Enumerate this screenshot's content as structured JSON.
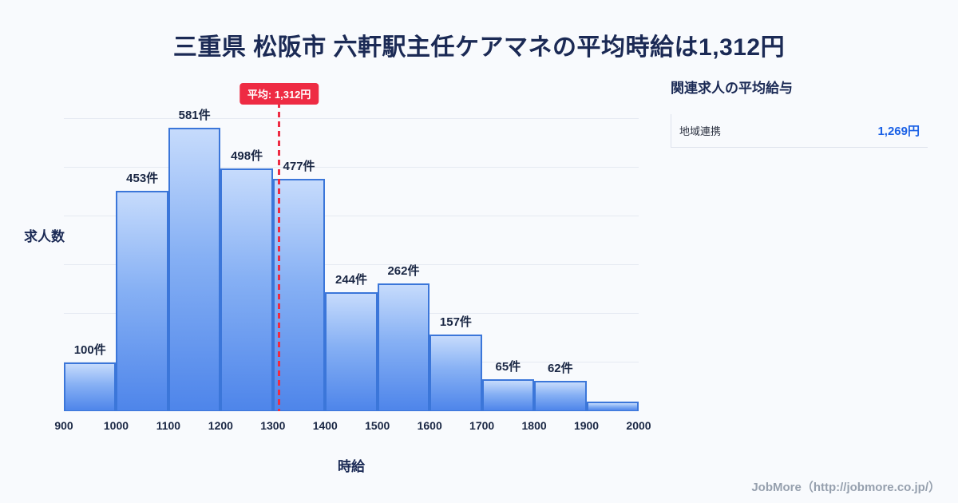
{
  "title": "三重県 松阪市 六軒駅主任ケアマネの平均時給は1,312円",
  "chart_data": {
    "type": "bar",
    "title": "三重県 松阪市 六軒駅主任ケアマネの平均時給は1,312円",
    "xlabel": "時給",
    "ylabel": "求人数",
    "x_min": 900,
    "x_max": 2000,
    "bin_width": 100,
    "x_ticks": [
      "900",
      "1000",
      "1100",
      "1200",
      "1300",
      "1400",
      "1500",
      "1600",
      "1700",
      "1800",
      "1900",
      "2000"
    ],
    "values": [
      100,
      453,
      581,
      498,
      477,
      244,
      262,
      157,
      65,
      62,
      20
    ],
    "bar_labels": [
      "100件",
      "453件",
      "581件",
      "498件",
      "477件",
      "244件",
      "262件",
      "157件",
      "65件",
      "62件",
      ""
    ],
    "ylim": [
      0,
      680
    ],
    "gridline_step": 100,
    "grid": "on",
    "legend_position": "none",
    "average": {
      "value": 1312,
      "label": "平均: 1,312円"
    }
  },
  "side_panel": {
    "heading": "関連求人の平均給与",
    "rows": [
      {
        "label": "地域連携",
        "value": "1,269円"
      }
    ]
  },
  "footer": {
    "text": "JobMore（http://jobmore.co.jp/）"
  },
  "colors": {
    "background": "#f8fafd",
    "title_text": "#1b2a55",
    "bar_border": "#3b76d9",
    "bar_gradient_top": "#c6dbfc",
    "bar_gradient_bottom": "#4e85ea",
    "average_line": "#ee2b43",
    "badge_background": "#ee2b43",
    "badge_text": "#ffffff",
    "side_value_text": "#1b61e6",
    "gridline": "#e5eaf2",
    "footer_text": "#96a0ae"
  }
}
